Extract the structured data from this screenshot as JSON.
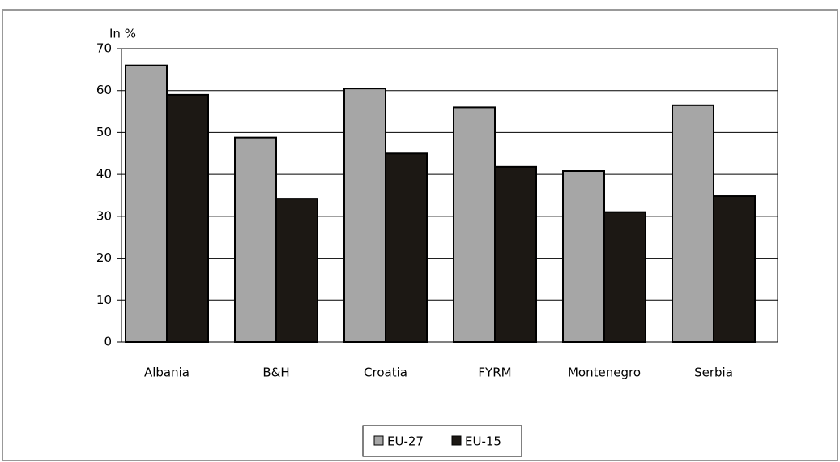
{
  "chart_data": {
    "type": "bar",
    "y_label": "In %",
    "categories": [
      "Albania",
      "B&H",
      "Croatia",
      "FYRM",
      "Montenegro",
      "Serbia"
    ],
    "series": [
      {
        "name": "EU-27",
        "color": "#a6a6a6",
        "values": [
          66,
          48.8,
          60.5,
          56,
          40.8,
          56.5
        ]
      },
      {
        "name": "EU-15",
        "color": "#1c1814",
        "values": [
          59,
          34.2,
          45,
          41.8,
          31,
          34.8
        ]
      }
    ],
    "ylim": [
      0,
      70
    ],
    "yticks": [
      0,
      10,
      20,
      30,
      40,
      50,
      60,
      70
    ],
    "grid": true,
    "legend": "bottom"
  }
}
